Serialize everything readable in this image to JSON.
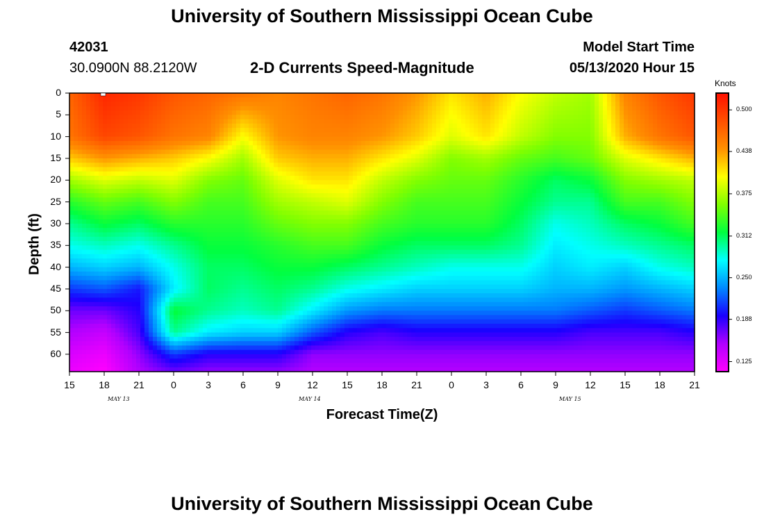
{
  "header": {
    "title": "University of Southern Mississippi Ocean Cube",
    "station_id": "42031",
    "coordinates": "30.0900N 88.2120W",
    "subtitle": "2-D Currents Speed-Magnitude",
    "model_start_label": "Model Start Time",
    "model_start_value": "05/13/2020 Hour 15"
  },
  "footer": {
    "title": "University of Southern Mississippi Ocean Cube"
  },
  "colors": {
    "scale": [
      "#ff00ff",
      "#b000ff",
      "#1a00ff",
      "#0088ff",
      "#00ffff",
      "#00ff40",
      "#80ff00",
      "#ffff00",
      "#ff9000",
      "#ff5000",
      "#ff1000"
    ]
  },
  "chart_data": {
    "type": "heatmap",
    "xlabel": "Forecast Time(Z)",
    "ylabel": "Depth (ft)",
    "x_ticks": [
      "15",
      "18",
      "21",
      "0",
      "3",
      "6",
      "9",
      "12",
      "15",
      "18",
      "21",
      "0",
      "3",
      "6",
      "9",
      "12",
      "15",
      "18",
      "21"
    ],
    "date_labels": [
      {
        "label": "MAY 13",
        "hour_offset": 4.5
      },
      {
        "label": "MAY 14",
        "hour_offset": 21
      },
      {
        "label": "MAY 15",
        "hour_offset": 43.5
      }
    ],
    "x_range_hours": [
      0,
      54
    ],
    "y_ticks": [
      0,
      5,
      10,
      15,
      20,
      25,
      30,
      35,
      40,
      45,
      50,
      55,
      60
    ],
    "ylim": [
      0,
      64
    ],
    "colorbar": {
      "label": "Knots",
      "range": [
        0.11,
        0.525
      ],
      "ticks": [
        "0.500",
        "0.438",
        "0.375",
        "0.312",
        "0.250",
        "0.188",
        "0.125"
      ],
      "tick_values": [
        0.5,
        0.438,
        0.375,
        0.312,
        0.25,
        0.188,
        0.125
      ]
    },
    "depth_levels_ft": [
      0,
      10,
      15,
      20,
      25,
      30,
      35,
      40,
      45,
      50,
      55,
      60,
      64
    ],
    "time_hours": [
      0,
      3,
      6,
      9,
      12,
      15,
      18,
      21,
      24,
      27,
      30,
      33,
      36,
      39,
      42,
      45,
      48,
      51,
      54
    ],
    "speed_knots": [
      [
        0.47,
        0.51,
        0.5,
        0.48,
        0.47,
        0.46,
        0.45,
        0.46,
        0.47,
        0.46,
        0.44,
        0.41,
        0.43,
        0.4,
        0.38,
        0.37,
        0.45,
        0.48,
        0.5
      ],
      [
        0.46,
        0.49,
        0.48,
        0.46,
        0.45,
        0.4,
        0.44,
        0.45,
        0.45,
        0.44,
        0.42,
        0.39,
        0.41,
        0.38,
        0.36,
        0.36,
        0.43,
        0.46,
        0.48
      ],
      [
        0.42,
        0.44,
        0.43,
        0.42,
        0.4,
        0.37,
        0.42,
        0.43,
        0.43,
        0.41,
        0.39,
        0.36,
        0.37,
        0.35,
        0.34,
        0.35,
        0.39,
        0.41,
        0.43
      ],
      [
        0.37,
        0.39,
        0.38,
        0.39,
        0.36,
        0.35,
        0.39,
        0.41,
        0.41,
        0.38,
        0.36,
        0.35,
        0.35,
        0.33,
        0.31,
        0.32,
        0.36,
        0.37,
        0.38
      ],
      [
        0.33,
        0.35,
        0.34,
        0.36,
        0.34,
        0.34,
        0.37,
        0.38,
        0.39,
        0.36,
        0.34,
        0.34,
        0.34,
        0.32,
        0.3,
        0.3,
        0.34,
        0.34,
        0.36
      ],
      [
        0.3,
        0.32,
        0.31,
        0.33,
        0.33,
        0.33,
        0.35,
        0.36,
        0.36,
        0.34,
        0.33,
        0.33,
        0.33,
        0.31,
        0.28,
        0.29,
        0.31,
        0.32,
        0.34
      ],
      [
        0.28,
        0.29,
        0.28,
        0.3,
        0.32,
        0.32,
        0.33,
        0.34,
        0.34,
        0.32,
        0.31,
        0.31,
        0.31,
        0.3,
        0.27,
        0.28,
        0.29,
        0.3,
        0.31
      ],
      [
        0.25,
        0.26,
        0.25,
        0.28,
        0.31,
        0.31,
        0.32,
        0.32,
        0.31,
        0.3,
        0.29,
        0.28,
        0.28,
        0.28,
        0.26,
        0.27,
        0.26,
        0.28,
        0.29
      ],
      [
        0.21,
        0.22,
        0.2,
        0.27,
        0.31,
        0.3,
        0.31,
        0.3,
        0.28,
        0.27,
        0.26,
        0.26,
        0.26,
        0.26,
        0.25,
        0.25,
        0.24,
        0.25,
        0.26
      ],
      [
        0.17,
        0.17,
        0.19,
        0.32,
        0.3,
        0.29,
        0.3,
        0.27,
        0.24,
        0.23,
        0.23,
        0.23,
        0.23,
        0.23,
        0.23,
        0.22,
        0.21,
        0.22,
        0.23
      ],
      [
        0.15,
        0.14,
        0.18,
        0.3,
        0.27,
        0.26,
        0.26,
        0.22,
        0.19,
        0.18,
        0.19,
        0.19,
        0.19,
        0.19,
        0.19,
        0.18,
        0.18,
        0.18,
        0.19
      ],
      [
        0.13,
        0.12,
        0.16,
        0.21,
        0.19,
        0.19,
        0.19,
        0.16,
        0.16,
        0.16,
        0.16,
        0.16,
        0.16,
        0.16,
        0.16,
        0.16,
        0.16,
        0.16,
        0.16
      ],
      [
        0.12,
        0.11,
        0.15,
        0.17,
        0.16,
        0.16,
        0.16,
        0.15,
        0.15,
        0.15,
        0.15,
        0.15,
        0.15,
        0.15,
        0.15,
        0.15,
        0.15,
        0.15,
        0.15
      ]
    ]
  }
}
